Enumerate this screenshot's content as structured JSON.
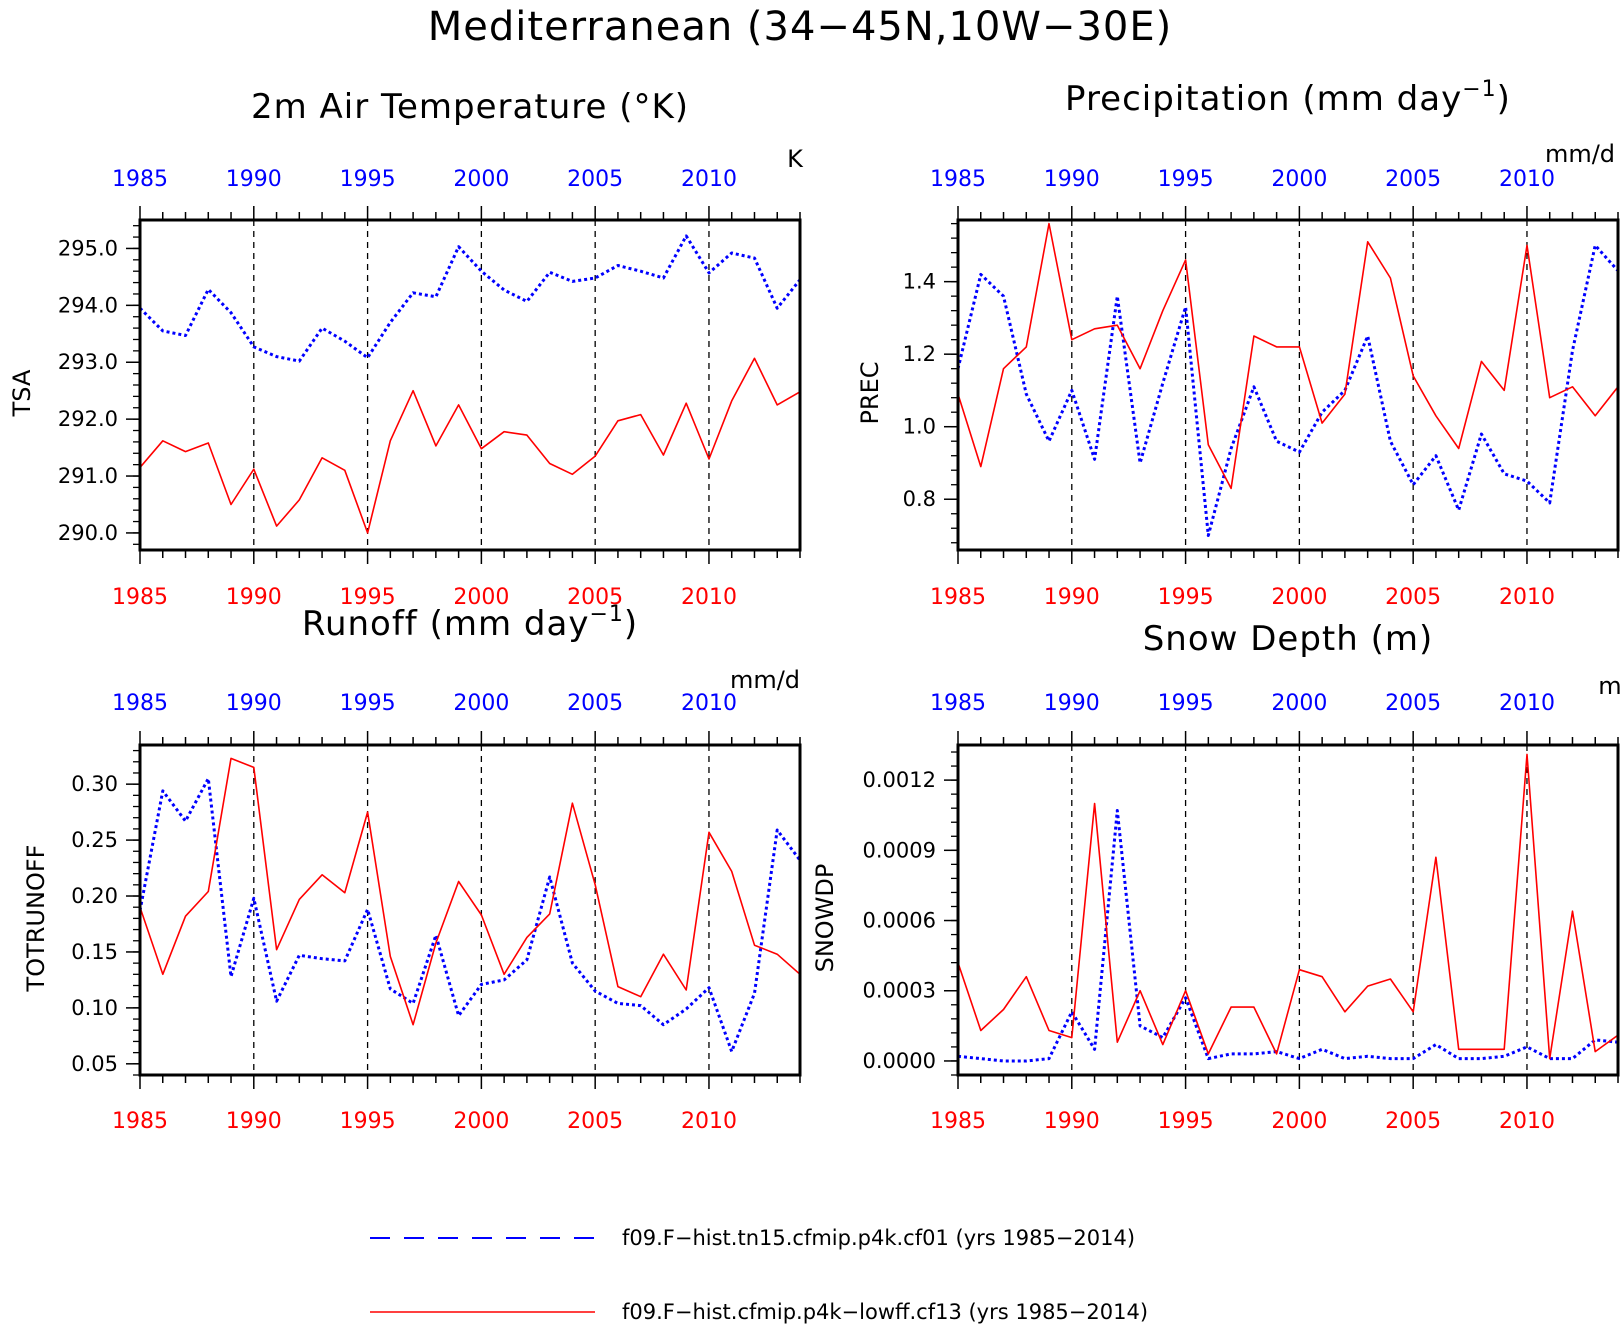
{
  "figure": {
    "title": "Mediterranean (34−45N,10W−30E)",
    "colors": {
      "series_a": "#0000ff",
      "series_b": "#ff0000",
      "grid": "#000000"
    },
    "legend": [
      {
        "label": "f09.F−hist.tn15.cfmip.p4k.cf01 (yrs 1985−2014)",
        "color": "#0000ff",
        "style": "dashed"
      },
      {
        "label": "f09.F−hist.cfmip.p4k−lowff.cf13 (yrs 1985−2014)",
        "color": "#ff0000",
        "style": "solid"
      }
    ]
  },
  "chart_data": [
    {
      "type": "line",
      "title": "2m Air Temperature (°K)",
      "unit": "K",
      "ylabel": "TSA",
      "xlim": [
        1985,
        2014
      ],
      "ylim": [
        289.7,
        295.5
      ],
      "yticks": [
        "290.0",
        "291.0",
        "292.0",
        "293.0",
        "294.0",
        "295.0"
      ],
      "ytick_values": [
        290,
        291,
        292,
        293,
        294,
        295
      ],
      "xticks": [
        "1985",
        "1990",
        "1995",
        "2000",
        "2005",
        "2010"
      ],
      "x": [
        1985,
        1986,
        1987,
        1988,
        1989,
        1990,
        1991,
        1992,
        1993,
        1994,
        1995,
        1996,
        1997,
        1998,
        1999,
        2000,
        2001,
        2002,
        2003,
        2004,
        2005,
        2006,
        2007,
        2008,
        2009,
        2010,
        2011,
        2012,
        2013,
        2014
      ],
      "series": [
        {
          "name": "f09.F−hist.tn15.cfmip.p4k.cf01",
          "color": "#0000ff",
          "style": "dotted",
          "values": [
            293.95,
            293.55,
            293.47,
            294.28,
            293.87,
            293.27,
            293.1,
            293.02,
            293.6,
            293.37,
            293.08,
            293.7,
            294.22,
            294.15,
            295.03,
            294.6,
            294.27,
            294.07,
            294.58,
            294.42,
            294.48,
            294.7,
            294.6,
            294.48,
            295.22,
            294.57,
            294.92,
            294.83,
            293.95,
            294.45
          ]
        },
        {
          "name": "f09.F−hist.cfmip.p4k−lowff.cf13",
          "color": "#ff0000",
          "style": "solid",
          "values": [
            291.15,
            291.62,
            291.43,
            291.58,
            290.5,
            291.12,
            290.12,
            290.58,
            291.32,
            291.1,
            290.0,
            291.62,
            292.5,
            291.53,
            292.25,
            291.48,
            291.78,
            291.72,
            291.22,
            291.03,
            291.35,
            291.97,
            292.08,
            291.37,
            292.28,
            291.3,
            292.32,
            293.07,
            292.25,
            292.48
          ]
        }
      ]
    },
    {
      "type": "line",
      "title": "Precipitation (mm day",
      "title_sup": "−1",
      "title_end": ")",
      "unit": "mm/d",
      "ylabel": "PREC",
      "xlim": [
        1985,
        2014
      ],
      "ylim": [
        0.66,
        1.57
      ],
      "yticks": [
        "0.8",
        "1.0",
        "1.2",
        "1.4"
      ],
      "ytick_values": [
        0.8,
        1.0,
        1.2,
        1.4
      ],
      "xticks": [
        "1985",
        "1990",
        "1995",
        "2000",
        "2005",
        "2010"
      ],
      "x": [
        1985,
        1986,
        1987,
        1988,
        1989,
        1990,
        1991,
        1992,
        1993,
        1994,
        1995,
        1996,
        1997,
        1998,
        1999,
        2000,
        2001,
        2002,
        2003,
        2004,
        2005,
        2006,
        2007,
        2008,
        2009,
        2010,
        2011,
        2012,
        2013,
        2014
      ],
      "series": [
        {
          "name": "f09.F−hist.tn15.cfmip.p4k.cf01",
          "color": "#0000ff",
          "style": "dotted",
          "values": [
            1.16,
            1.42,
            1.36,
            1.09,
            0.96,
            1.1,
            0.91,
            1.36,
            0.9,
            1.12,
            1.33,
            0.7,
            0.94,
            1.11,
            0.96,
            0.93,
            1.04,
            1.1,
            1.25,
            0.96,
            0.84,
            0.92,
            0.77,
            0.98,
            0.87,
            0.85,
            0.79,
            1.21,
            1.5,
            1.43
          ]
        },
        {
          "name": "f09.F−hist.cfmip.p4k−lowff.cf13",
          "color": "#ff0000",
          "style": "solid",
          "values": [
            1.09,
            0.89,
            1.16,
            1.22,
            1.56,
            1.24,
            1.27,
            1.28,
            1.16,
            1.32,
            1.46,
            0.95,
            0.83,
            1.25,
            1.22,
            1.22,
            1.01,
            1.09,
            1.51,
            1.41,
            1.14,
            1.03,
            0.94,
            1.18,
            1.1,
            1.5,
            1.08,
            1.11,
            1.03,
            1.11
          ]
        }
      ]
    },
    {
      "type": "line",
      "title": "Runoff (mm day",
      "title_sup": "−1",
      "title_end": ")",
      "unit": "mm/d",
      "ylabel": "TOTRUNOFF",
      "xlim": [
        1985,
        2014
      ],
      "ylim": [
        0.04,
        0.335
      ],
      "yticks": [
        "0.05",
        "0.10",
        "0.15",
        "0.20",
        "0.25",
        "0.30"
      ],
      "ytick_values": [
        0.05,
        0.1,
        0.15,
        0.2,
        0.25,
        0.3
      ],
      "xticks": [
        "1985",
        "1990",
        "1995",
        "2000",
        "2005",
        "2010"
      ],
      "x": [
        1985,
        1986,
        1987,
        1988,
        1989,
        1990,
        1991,
        1992,
        1993,
        1994,
        1995,
        1996,
        1997,
        1998,
        1999,
        2000,
        2001,
        2002,
        2003,
        2004,
        2005,
        2006,
        2007,
        2008,
        2009,
        2010,
        2011,
        2012,
        2013,
        2014
      ],
      "series": [
        {
          "name": "f09.F−hist.tn15.cfmip.p4k.cf01",
          "color": "#0000ff",
          "style": "dotted",
          "values": [
            0.187,
            0.294,
            0.267,
            0.305,
            0.128,
            0.198,
            0.106,
            0.147,
            0.144,
            0.142,
            0.188,
            0.117,
            0.104,
            0.165,
            0.093,
            0.121,
            0.125,
            0.143,
            0.217,
            0.14,
            0.115,
            0.104,
            0.102,
            0.085,
            0.099,
            0.118,
            0.061,
            0.113,
            0.259,
            0.232
          ]
        },
        {
          "name": "f09.F−hist.cfmip.p4k−lowff.cf13",
          "color": "#ff0000",
          "style": "solid",
          "values": [
            0.19,
            0.13,
            0.182,
            0.204,
            0.323,
            0.315,
            0.152,
            0.197,
            0.219,
            0.203,
            0.275,
            0.146,
            0.085,
            0.158,
            0.213,
            0.183,
            0.13,
            0.163,
            0.184,
            0.283,
            0.21,
            0.119,
            0.11,
            0.148,
            0.116,
            0.257,
            0.222,
            0.156,
            0.148,
            0.13
          ]
        }
      ]
    },
    {
      "type": "line",
      "title": "Snow Depth (m)",
      "unit": "m",
      "ylabel": "SNOWDP",
      "xlim": [
        1985,
        2014
      ],
      "ylim": [
        -6e-05,
        0.00135
      ],
      "yticks": [
        "0.0000",
        "0.0003",
        "0.0006",
        "0.0009",
        "0.0012"
      ],
      "ytick_values": [
        0,
        0.0003,
        0.0006,
        0.0009,
        0.0012
      ],
      "xticks": [
        "1985",
        "1990",
        "1995",
        "2000",
        "2005",
        "2010"
      ],
      "x": [
        1985,
        1986,
        1987,
        1988,
        1989,
        1990,
        1991,
        1992,
        1993,
        1994,
        1995,
        1996,
        1997,
        1998,
        1999,
        2000,
        2001,
        2002,
        2003,
        2004,
        2005,
        2006,
        2007,
        2008,
        2009,
        2010,
        2011,
        2012,
        2013,
        2014
      ],
      "series": [
        {
          "name": "f09.F−hist.tn15.cfmip.p4k.cf01",
          "color": "#0000ff",
          "style": "dotted",
          "values": [
            2e-05,
            1e-05,
            0.0,
            0.0,
            1e-05,
            0.00021,
            5e-05,
            0.00107,
            0.00015,
            0.0001,
            0.00027,
            1e-05,
            3e-05,
            3e-05,
            4e-05,
            1e-05,
            5e-05,
            1e-05,
            2e-05,
            1e-05,
            1e-05,
            7e-05,
            1e-05,
            1e-05,
            2e-05,
            6e-05,
            1e-05,
            1e-05,
            9e-05,
            8e-05
          ]
        },
        {
          "name": "f09.F−hist.cfmip.p4k−lowff.cf13",
          "color": "#ff0000",
          "style": "solid",
          "values": [
            0.00042,
            0.00013,
            0.00022,
            0.00036,
            0.00013,
            0.0001,
            0.0011,
            8e-05,
            0.0003,
            7e-05,
            0.0003,
            3e-05,
            0.00023,
            0.00023,
            3e-05,
            0.00039,
            0.00036,
            0.00021,
            0.00032,
            0.00035,
            0.00021,
            0.00087,
            5e-05,
            5e-05,
            5e-05,
            0.00131,
            1e-05,
            0.00064,
            4e-05,
            0.00011
          ]
        }
      ]
    }
  ]
}
